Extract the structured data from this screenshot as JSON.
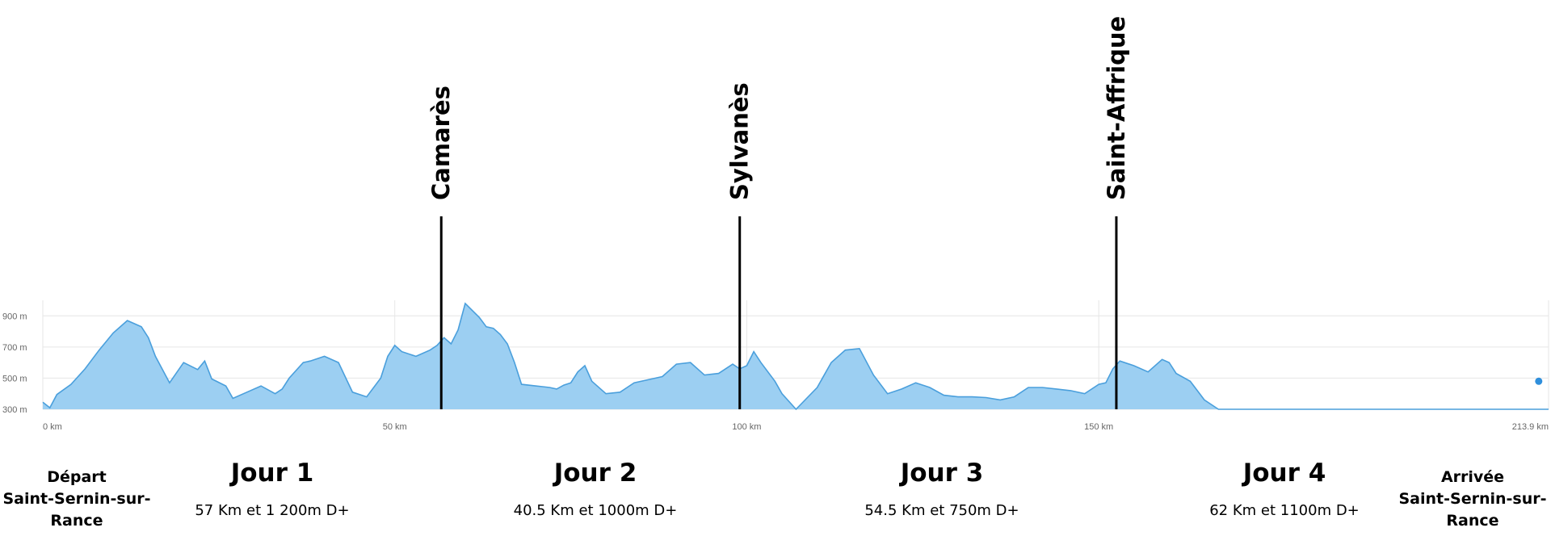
{
  "chart_data": {
    "type": "area",
    "title": "",
    "xlabel": "",
    "ylabel": "",
    "unit_x": "km",
    "unit_y": "m",
    "xlim": [
      0,
      213.9
    ],
    "ylim": [
      300,
      1000
    ],
    "x_ticks": [
      {
        "value": 0,
        "label": "0 km"
      },
      {
        "value": 50,
        "label": "50 km"
      },
      {
        "value": 100,
        "label": "100 km"
      },
      {
        "value": 150,
        "label": "150 km"
      },
      {
        "value": 213.9,
        "label": "213.9 km"
      }
    ],
    "y_ticks": [
      {
        "value": 300,
        "label": "300 m"
      },
      {
        "value": 500,
        "label": "500 m"
      },
      {
        "value": 700,
        "label": "700 m"
      },
      {
        "value": 900,
        "label": "900 m"
      }
    ],
    "grid": true,
    "legend": "none",
    "fill_color": "#9ccff2",
    "line_color": "#4a9fdc",
    "marker_color": "#2f8fdc",
    "x": [
      0,
      1,
      2,
      4,
      6,
      8,
      10,
      12,
      14,
      15,
      16,
      18,
      20,
      22,
      23,
      24,
      26,
      27,
      29,
      31,
      33,
      34,
      35,
      37,
      38,
      40,
      42,
      44,
      46,
      48,
      49,
      50,
      51,
      53,
      55,
      56,
      57,
      58,
      59,
      60,
      62,
      63,
      64,
      65,
      66,
      67,
      68,
      70,
      71,
      72,
      73,
      74,
      75,
      76,
      77,
      78,
      80,
      82,
      83,
      84,
      86,
      88,
      90,
      92,
      94,
      96,
      98,
      99,
      100,
      101,
      102,
      104,
      105,
      107,
      110,
      112,
      114,
      116,
      118,
      120,
      122,
      124,
      126,
      128,
      130,
      132,
      134,
      136,
      138,
      140,
      142,
      144,
      146,
      148,
      150,
      151,
      152,
      153,
      155,
      157,
      159,
      160,
      161,
      163,
      165,
      167,
      169,
      171,
      173,
      175,
      177,
      179,
      181,
      183,
      185,
      187,
      189,
      191,
      193,
      195,
      196,
      197,
      198,
      200,
      202,
      204,
      205,
      206,
      208,
      209,
      210,
      211,
      212,
      213,
      213.9
    ],
    "elevation": [
      345,
      310,
      395,
      460,
      560,
      680,
      790,
      870,
      830,
      760,
      640,
      470,
      600,
      555,
      610,
      495,
      450,
      370,
      410,
      450,
      400,
      430,
      500,
      600,
      610,
      640,
      600,
      410,
      380,
      500,
      640,
      710,
      670,
      640,
      680,
      710,
      760,
      720,
      810,
      980,
      890,
      830,
      820,
      780,
      720,
      600,
      460,
      450,
      445,
      440,
      430,
      455,
      470,
      540,
      580,
      480,
      400,
      410,
      440,
      470,
      490,
      510,
      590,
      600,
      520,
      530,
      590,
      560,
      580,
      670,
      600,
      480,
      400,
      300,
      440,
      600,
      680,
      690,
      520,
      400,
      430,
      470,
      440,
      390,
      380,
      380,
      375,
      360,
      380,
      440,
      440,
      430,
      420,
      400,
      460,
      470,
      560,
      610,
      580,
      540,
      620,
      600,
      530,
      480,
      360,
      300,
      300,
      300,
      300,
      300,
      300,
      300,
      300,
      300,
      300,
      300,
      300,
      300,
      300,
      300,
      300,
      300,
      300,
      300,
      300,
      300,
      300,
      300,
      300,
      300,
      300,
      300,
      300,
      300,
      300
    ],
    "marker": {
      "x": 212.5,
      "elevation": 480
    }
  },
  "waypoints": [
    {
      "name": "Camarès",
      "km": 56.6
    },
    {
      "name": "Sylvanès",
      "km": 99
    },
    {
      "name": "Saint-Affrique",
      "km": 152.5
    }
  ],
  "start": {
    "line1": "Départ",
    "line2": "Saint-Sernin-sur-",
    "line3": "Rance"
  },
  "finish": {
    "line1": "Arrivée",
    "line2": "Saint-Sernin-sur-",
    "line3": "Rance"
  },
  "stages": [
    {
      "title": "Jour 1",
      "detail": "57 Km et 1 200m D+"
    },
    {
      "title": "Jour 2",
      "detail": "40.5 Km et 1000m D+"
    },
    {
      "title": "Jour 3",
      "detail": "54.5 Km et 750m D+"
    },
    {
      "title": "Jour 4",
      "detail": "62 Km et 1100m D+"
    }
  ]
}
